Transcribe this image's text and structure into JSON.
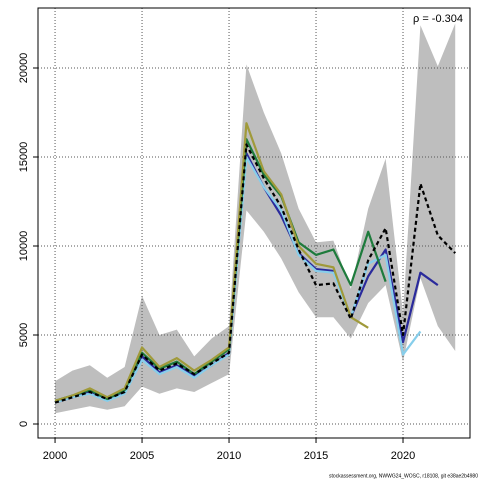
{
  "chart_data": {
    "type": "line",
    "annotation": "ρ = -0.304",
    "footer": "stockassessment.org, NWWG24_WOSC, r18108, git e38ae2b4980",
    "x": [
      2000,
      2001,
      2002,
      2003,
      2004,
      2005,
      2006,
      2007,
      2008,
      2009,
      2010,
      2011,
      2012,
      2013,
      2014,
      2015,
      2016,
      2017,
      2018,
      2019,
      2020,
      2021,
      2022,
      2023
    ],
    "band": {
      "color": "#bebebe",
      "upper": [
        2400,
        3000,
        3300,
        2600,
        3200,
        7200,
        5000,
        5300,
        3800,
        4800,
        5500,
        20200,
        17500,
        15200,
        12100,
        10200,
        10300,
        7600,
        12100,
        14900,
        6200,
        22400,
        20100,
        22500
      ],
      "lower": [
        600,
        800,
        1000,
        800,
        1000,
        2100,
        1700,
        2000,
        1800,
        2300,
        2800,
        12000,
        10800,
        9300,
        7400,
        6000,
        6000,
        4800,
        6800,
        7800,
        3500,
        8200,
        5500,
        4100
      ]
    },
    "series": [
      {
        "color": "#000000",
        "dashed": true,
        "values": [
          1200,
          1500,
          1800,
          1400,
          1800,
          3900,
          3000,
          3400,
          2800,
          3400,
          4000,
          15700,
          13800,
          12200,
          9800,
          7800,
          7900,
          5900,
          9200,
          11000,
          5000,
          13500,
          10600,
          9600
        ]
      },
      {
        "color": "#2a2a9c",
        "values": [
          1200,
          1500,
          1800,
          1400,
          1800,
          3800,
          2900,
          3300,
          2700,
          3300,
          4000,
          15200,
          13300,
          11700,
          9600,
          8700,
          8600,
          6000,
          8300,
          9800,
          4600,
          8500,
          7800,
          null
        ]
      },
      {
        "color": "#87ceeb",
        "values": [
          1200,
          1500,
          1700,
          1300,
          1700,
          3600,
          2800,
          3200,
          2600,
          3300,
          3900,
          15000,
          13300,
          12000,
          9500,
          8600,
          8500,
          6000,
          9000,
          9500,
          3900,
          5200,
          null,
          null
        ]
      },
      {
        "color": "#1e7b3c",
        "values": [
          1300,
          1600,
          1900,
          1400,
          1900,
          4000,
          3100,
          3500,
          2800,
          3500,
          4200,
          16000,
          14000,
          12800,
          10200,
          9500,
          9800,
          7800,
          10800,
          8000,
          null,
          null,
          null,
          null
        ]
      },
      {
        "color": "#a09a3a",
        "values": [
          1300,
          1600,
          2000,
          1500,
          2000,
          4300,
          3200,
          3700,
          3000,
          3600,
          4300,
          16900,
          14200,
          12900,
          10000,
          9000,
          8800,
          6000,
          5400,
          null,
          null,
          null,
          null,
          null
        ]
      }
    ],
    "xlim": [
      1999.02,
      2023.85
    ],
    "ylim": [
      -787,
      23370
    ],
    "xticks": [
      2000,
      2005,
      2010,
      2015,
      2020
    ],
    "yticks": [
      0,
      5000,
      10000,
      15000,
      20000
    ],
    "grid": true
  }
}
